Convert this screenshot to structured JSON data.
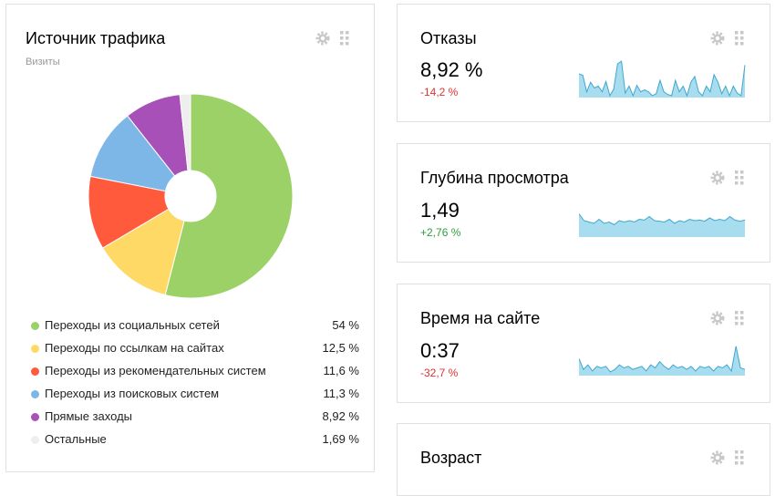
{
  "traffic": {
    "title": "Источник трафика",
    "subtitle": "Визиты",
    "colors": [
      "#9bd166",
      "#ffd966",
      "#ff5a3c",
      "#7db7e8",
      "#a650b8",
      "#eeeeee"
    ],
    "sources": [
      {
        "label": "Переходы из социальных сетей",
        "value_text": "54 %",
        "value": 54
      },
      {
        "label": "Переходы по ссылкам на сайтах",
        "value_text": "12,5 %",
        "value": 12.5
      },
      {
        "label": "Переходы из рекомендательных систем",
        "value_text": "11,6 %",
        "value": 11.6
      },
      {
        "label": "Переходы из поисковых систем",
        "value_text": "11,3 %",
        "value": 11.3
      },
      {
        "label": "Прямые заходы",
        "value_text": "8,92 %",
        "value": 8.92
      },
      {
        "label": "Остальные",
        "value_text": "1,69 %",
        "value": 1.69
      }
    ]
  },
  "metrics": [
    {
      "title": "Отказы",
      "value": "8,92 %",
      "delta": "-14,2 %",
      "delta_color": "#e03030",
      "spark": [
        0.62,
        0.58,
        0.15,
        0.4,
        0.25,
        0.3,
        0.15,
        0.42,
        0.05,
        0.22,
        0.88,
        0.95,
        0.12,
        0.3,
        0.05,
        0.32,
        0.15,
        0.2,
        0.15,
        0.05,
        0.1,
        0.45,
        0.15,
        0.08,
        0.05,
        0.45,
        0.15,
        0.3,
        0.05,
        0.4,
        0.55,
        0.15,
        0.05,
        0.3,
        0.15,
        0.6,
        0.4,
        0.1,
        0.3,
        0.05,
        0.3,
        0.12,
        0.05,
        0.85
      ]
    },
    {
      "title": "Глубина просмотра",
      "value": "1,49",
      "delta": "+2,76 %",
      "delta_color": "#2e9e3c",
      "spark": [
        0.85,
        0.6,
        0.55,
        0.5,
        0.65,
        0.5,
        0.55,
        0.45,
        0.6,
        0.55,
        0.6,
        0.55,
        0.65,
        0.62,
        0.75,
        0.6,
        0.58,
        0.55,
        0.65,
        0.5,
        0.6,
        0.55,
        0.65,
        0.6,
        0.62,
        0.58,
        0.7,
        0.6,
        0.65,
        0.6,
        0.75,
        0.62,
        0.58,
        0.62
      ]
    },
    {
      "title": "Время на сайте",
      "value": "0:37",
      "delta": "-32,7 %",
      "delta_color": "#e03030",
      "spark": [
        0.55,
        0.2,
        0.35,
        0.15,
        0.3,
        0.25,
        0.3,
        0.12,
        0.2,
        0.35,
        0.25,
        0.3,
        0.2,
        0.25,
        0.3,
        0.15,
        0.35,
        0.25,
        0.45,
        0.3,
        0.2,
        0.35,
        0.25,
        0.3,
        0.2,
        0.3,
        0.15,
        0.3,
        0.25,
        0.3,
        0.15,
        0.3,
        0.25,
        0.35,
        0.15,
        0.95,
        0.25,
        0.2
      ]
    },
    {
      "title": "Возраст"
    }
  ]
}
